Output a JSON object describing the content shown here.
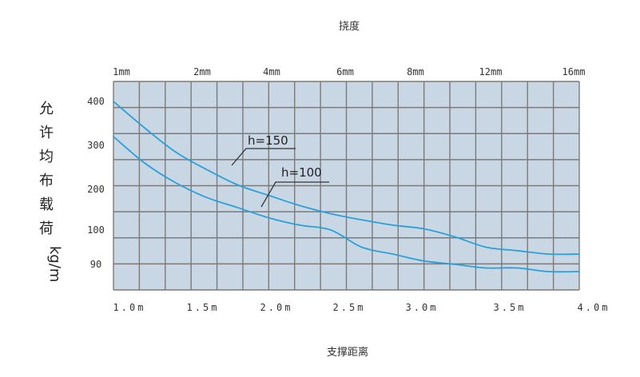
{
  "chart_data": {
    "type": "line",
    "title": "挠度",
    "xlabel": "支撑距离",
    "ylabel": "允许均布载荷",
    "ylabel_unit": "kg/m",
    "x_ticks": [
      "1.0m",
      "1.5m",
      "2.0m",
      "2.5m",
      "3.0m",
      "3.5m",
      "4.0m"
    ],
    "deflection_ticks": [
      "1mm",
      "2mm",
      "4mm",
      "6mm",
      "8mm",
      "12mm",
      "16mm"
    ],
    "y_ticks": [
      "400",
      "300",
      "200",
      "100",
      "90"
    ],
    "grid": true,
    "colors": {
      "plot_bg": "#c9d7e4",
      "grid": "#7a7a7a",
      "line": "#2aa0d8"
    },
    "series": [
      {
        "name": "h=150",
        "x": [
          1.0,
          1.2,
          1.4,
          1.6,
          1.8,
          2.0,
          2.2,
          2.4,
          2.6,
          2.8,
          3.0,
          3.2,
          3.4,
          3.6,
          3.8,
          4.0
        ],
        "y": [
          400,
          340,
          285,
          245,
          210,
          185,
          160,
          140,
          125,
          112,
          103,
          98,
          95,
          94,
          93,
          93
        ]
      },
      {
        "name": "h=100",
        "x": [
          1.0,
          1.2,
          1.4,
          1.6,
          1.8,
          2.0,
          2.2,
          2.4,
          2.6,
          2.8,
          3.0,
          3.2,
          3.4,
          3.6,
          3.8,
          4.0
        ],
        "y": [
          320,
          260,
          215,
          180,
          155,
          130,
          112,
          100,
          95,
          93,
          91,
          90,
          89,
          89,
          88,
          88
        ]
      }
    ]
  }
}
